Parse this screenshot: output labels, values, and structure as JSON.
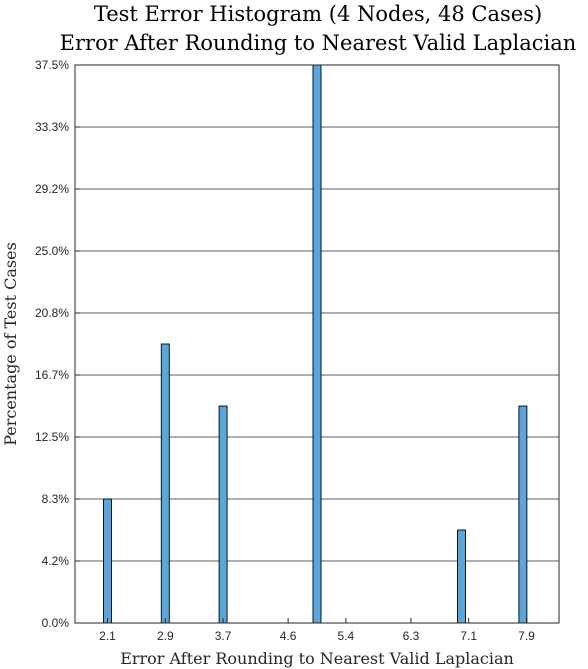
{
  "chart_data": {
    "type": "bar",
    "title": [
      "Test Error Histogram (4 Nodes, 48 Cases)",
      "Error After Rounding to Nearest Valid Laplacian"
    ],
    "xlabel": "Error After Rounding to Nearest Valid Laplacian",
    "ylabel": "Percentage of Test Cases",
    "xlim": [
      1.65,
      8.35
    ],
    "ylim": [
      0,
      37.5
    ],
    "xticks": [
      "2.1",
      "2.9",
      "3.7",
      "4.6",
      "5.4",
      "6.3",
      "7.1",
      "7.9"
    ],
    "yticks": [
      "0.0%",
      "4.2%",
      "8.3%",
      "12.5%",
      "16.7%",
      "20.8%",
      "25.0%",
      "29.2%",
      "33.3%",
      "37.5%"
    ],
    "grid": "horizontal",
    "bar_color": "#5aa5dc",
    "bar_edge_color": "#000000",
    "bars": [
      {
        "x": 2.1,
        "value": 8.33
      },
      {
        "x": 2.9,
        "value": 18.75
      },
      {
        "x": 3.7,
        "value": 14.58
      },
      {
        "x": 5.0,
        "value": 37.5
      },
      {
        "x": 7.0,
        "value": 6.25
      },
      {
        "x": 7.85,
        "value": 14.58
      }
    ]
  }
}
